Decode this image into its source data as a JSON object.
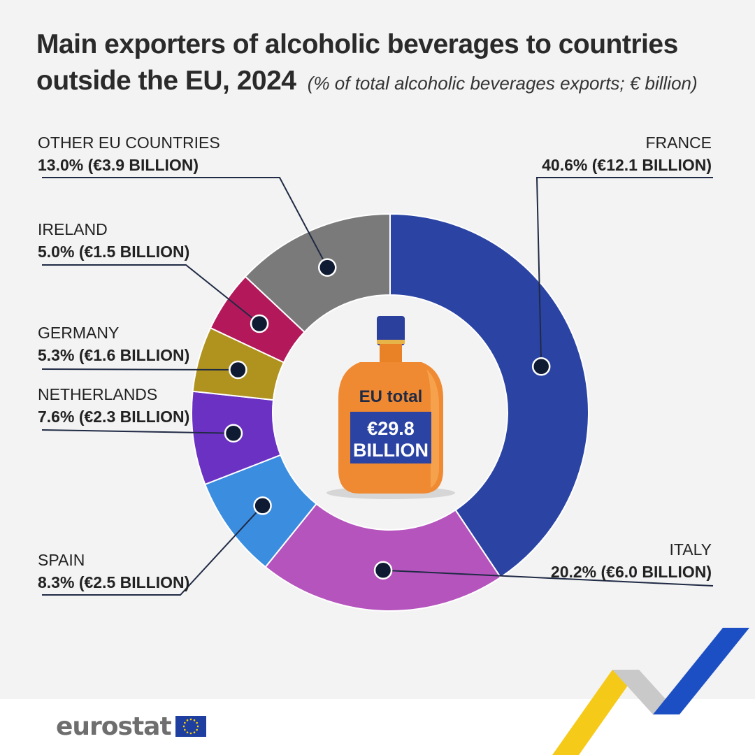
{
  "header": {
    "title_line1": "Main exporters of alcoholic beverages to countries",
    "title_line2": "outside the EU, 2024",
    "subtitle": "(% of total alcoholic beverages exports; € billion)"
  },
  "chart_data": {
    "type": "pie",
    "donut": true,
    "title": "Main exporters of alcoholic beverages to countries outside the EU, 2024",
    "subtitle": "(% of total alcoholic beverages exports; € billion)",
    "slices": [
      {
        "name": "France",
        "label": "FRANCE",
        "percent": 40.6,
        "value_label": "40.6% (€12.1 BILLION)",
        "value_billion": 12.1,
        "color": "#2b44a4"
      },
      {
        "name": "Italy",
        "label": "ITALY",
        "percent": 20.2,
        "value_label": "20.2% (€6.0 BILLION)",
        "value_billion": 6.0,
        "color": "#b554bd"
      },
      {
        "name": "Spain",
        "label": "SPAIN",
        "percent": 8.3,
        "value_label": "8.3% (€2.5 BILLION)",
        "value_billion": 2.5,
        "color": "#3b8de0"
      },
      {
        "name": "Netherlands",
        "label": "NETHERLANDS",
        "percent": 7.6,
        "value_label": "7.6% (€2.3 BILLION)",
        "value_billion": 2.3,
        "color": "#6a31c2"
      },
      {
        "name": "Germany",
        "label": "GERMANY",
        "percent": 5.3,
        "value_label": "5.3% (€1.6 BILLION)",
        "value_billion": 1.6,
        "color": "#b0921f"
      },
      {
        "name": "Ireland",
        "label": "IRELAND",
        "percent": 5.0,
        "value_label": "5.0% (€1.5 BILLION)",
        "value_billion": 1.5,
        "color": "#b3195a"
      },
      {
        "name": "Other EU countries",
        "label": "OTHER EU COUNTRIES",
        "percent": 13.0,
        "value_label": "13.0% (€3.9 BILLION)",
        "value_billion": 3.9,
        "color": "#7a7a7a"
      }
    ],
    "center": {
      "label": "EU total",
      "value_line1": "€29.8",
      "value_line2": "BILLION",
      "total_billion": 29.8
    }
  },
  "footer": {
    "logo_text": "eurostat"
  },
  "colors": {
    "background": "#f3f3f3",
    "leader_line": "#1f2a44",
    "bottle_body": "#f08a32",
    "bottle_cap": "#2b3f9c",
    "eu_blue": "#2b44a4",
    "accent_yellow": "#f5c400"
  }
}
